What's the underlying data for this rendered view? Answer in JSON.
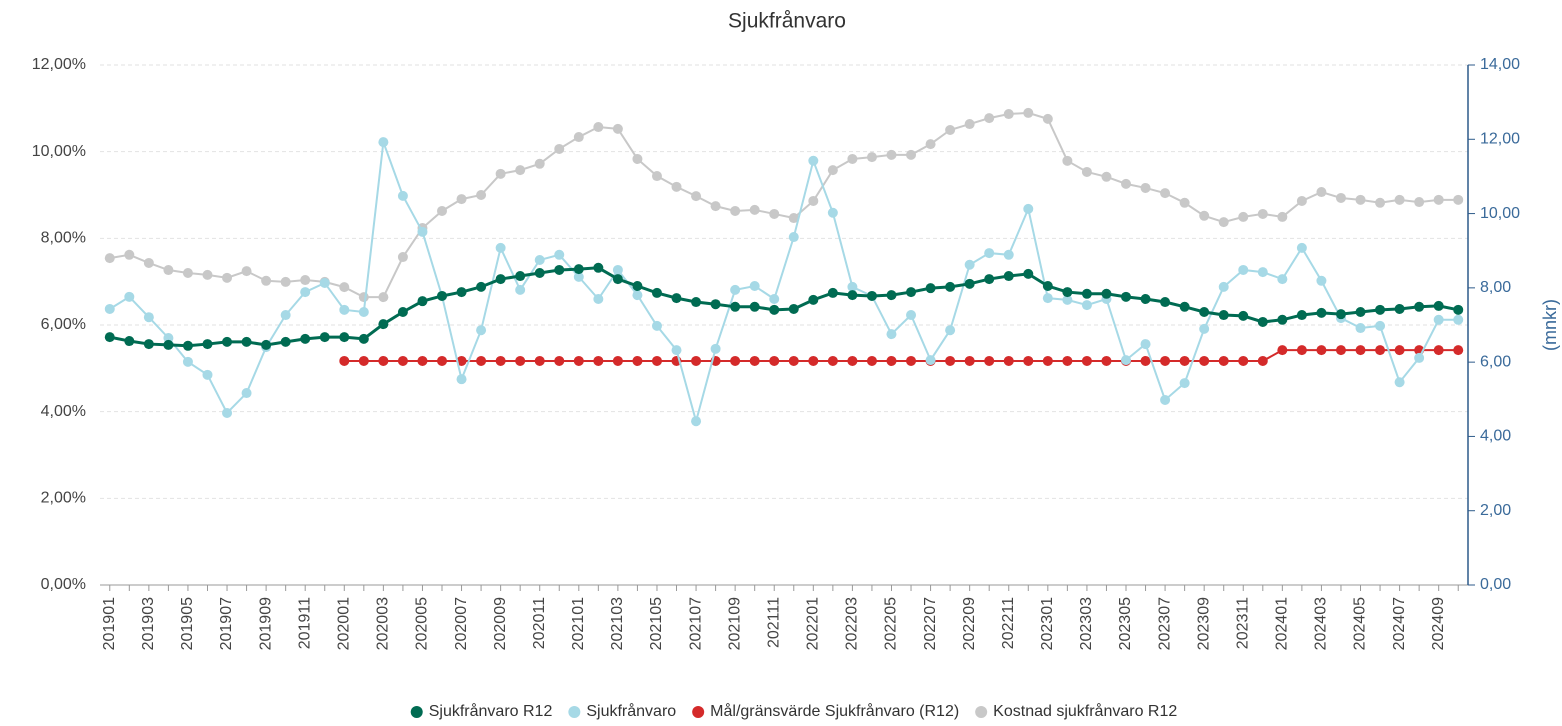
{
  "chart_data": {
    "type": "line",
    "title": "Sjukfrånvaro",
    "y2label": "(mnkr)",
    "categories": [
      "201901",
      null,
      "201903",
      null,
      "201905",
      null,
      "201907",
      null,
      "201909",
      null,
      "201911",
      null,
      "202001",
      null,
      "202003",
      null,
      "202005",
      null,
      "202007",
      null,
      "202009",
      null,
      "202011",
      null,
      "202101",
      null,
      "202103",
      null,
      "202105",
      null,
      "202107",
      null,
      "202109",
      null,
      "202111",
      null,
      "202201",
      null,
      "202203",
      null,
      "202205",
      null,
      "202207",
      null,
      "202209",
      null,
      "202211",
      null,
      "202301",
      null,
      "202303",
      null,
      "202305",
      null,
      "202307",
      null,
      "202309",
      null,
      "202311",
      null,
      "202401",
      null,
      "202403",
      null,
      "202405",
      null,
      "202407",
      null,
      "202409",
      null
    ],
    "ylim": [
      0,
      12
    ],
    "yticks": [
      {
        "value": 0,
        "label": "0,00%"
      },
      {
        "value": 2,
        "label": "2,00%"
      },
      {
        "value": 4,
        "label": "4,00%"
      },
      {
        "value": 6,
        "label": "6,00%"
      },
      {
        "value": 8,
        "label": "8,00%"
      },
      {
        "value": 10,
        "label": "10,00%"
      },
      {
        "value": 12,
        "label": "12,00%"
      }
    ],
    "y2lim": [
      0,
      14
    ],
    "y2ticks": [
      {
        "value": 0,
        "label": "0,00"
      },
      {
        "value": 2,
        "label": "2,00"
      },
      {
        "value": 4,
        "label": "4,00"
      },
      {
        "value": 6,
        "label": "6,00"
      },
      {
        "value": 8,
        "label": "8,00"
      },
      {
        "value": 10,
        "label": "10,00"
      },
      {
        "value": 12,
        "label": "12,00"
      },
      {
        "value": 14,
        "label": "14,00"
      }
    ],
    "grid": true,
    "legend": "bottom",
    "series": [
      {
        "name": "Sjukfrånvaro R12",
        "color": "#006b52",
        "values": [
          5.72,
          5.63,
          5.56,
          5.54,
          5.52,
          5.56,
          5.61,
          5.61,
          5.54,
          5.61,
          5.68,
          5.72,
          5.72,
          5.68,
          6.02,
          6.3,
          6.55,
          6.67,
          6.76,
          6.88,
          7.06,
          7.13,
          7.2,
          7.27,
          7.29,
          7.32,
          7.06,
          6.9,
          6.74,
          6.62,
          6.53,
          6.48,
          6.42,
          6.42,
          6.35,
          6.37,
          6.58,
          6.74,
          6.69,
          6.67,
          6.69,
          6.76,
          6.85,
          6.88,
          6.95,
          7.06,
          7.13,
          7.18,
          6.9,
          6.76,
          6.72,
          6.72,
          6.65,
          6.6,
          6.53,
          6.42,
          6.3,
          6.23,
          6.21,
          6.07,
          6.12,
          6.23,
          6.28,
          6.25,
          6.3,
          6.35,
          6.37,
          6.42,
          6.44,
          6.35
        ]
      },
      {
        "name": "Sjukfrånvaro",
        "color": "#a6d9e6",
        "values": [
          6.37,
          6.65,
          6.18,
          5.7,
          5.15,
          4.85,
          3.97,
          4.43,
          5.49,
          6.23,
          6.76,
          6.97,
          6.35,
          6.3,
          10.22,
          8.98,
          8.15,
          6.67,
          4.75,
          5.88,
          7.78,
          6.81,
          7.5,
          7.62,
          7.11,
          6.6,
          7.27,
          6.69,
          5.98,
          5.42,
          3.78,
          5.45,
          6.81,
          6.9,
          6.6,
          8.03,
          9.79,
          8.59,
          6.88,
          6.67,
          5.79,
          6.23,
          5.19,
          5.88,
          7.39,
          7.66,
          7.62,
          8.68,
          6.62,
          6.58,
          6.46,
          6.6,
          5.19,
          5.56,
          4.27,
          4.66,
          5.91,
          6.88,
          7.27,
          7.22,
          7.06,
          7.78,
          7.02,
          6.16,
          5.93,
          5.98,
          4.68,
          5.24,
          6.12,
          6.12
        ]
      },
      {
        "name": "Mål/gränsvärde Sjukfrånvaro (R12)",
        "color": "#d42a2a",
        "values": [
          null,
          null,
          null,
          null,
          null,
          null,
          null,
          null,
          null,
          null,
          null,
          null,
          5.17,
          5.17,
          5.17,
          5.17,
          5.17,
          5.17,
          5.17,
          5.17,
          5.17,
          5.17,
          5.17,
          5.17,
          5.17,
          5.17,
          5.17,
          5.17,
          5.17,
          5.17,
          5.17,
          5.17,
          5.17,
          5.17,
          5.17,
          5.17,
          5.17,
          5.17,
          5.17,
          5.17,
          5.17,
          5.17,
          5.17,
          5.17,
          5.17,
          5.17,
          5.17,
          5.17,
          5.17,
          5.17,
          5.17,
          5.17,
          5.17,
          5.17,
          5.17,
          5.17,
          5.17,
          5.17,
          5.17,
          5.17,
          5.42,
          5.42,
          5.42,
          5.42,
          5.42,
          5.42,
          5.42,
          5.42,
          5.42,
          5.42
        ]
      },
      {
        "name": "Kostnad sjukfrånvaro R12",
        "color": "#c8c8c8",
        "axis": "y2",
        "values": [
          8.8,
          8.89,
          8.67,
          8.48,
          8.4,
          8.35,
          8.27,
          8.45,
          8.19,
          8.16,
          8.21,
          8.16,
          8.02,
          7.75,
          7.75,
          8.83,
          9.61,
          10.07,
          10.39,
          10.5,
          11.07,
          11.17,
          11.34,
          11.74,
          12.06,
          12.33,
          12.28,
          11.47,
          11.01,
          10.72,
          10.47,
          10.2,
          10.07,
          10.1,
          9.99,
          9.88,
          10.34,
          11.17,
          11.47,
          11.52,
          11.58,
          11.58,
          11.87,
          12.25,
          12.41,
          12.57,
          12.68,
          12.71,
          12.55,
          11.42,
          11.12,
          10.99,
          10.8,
          10.69,
          10.55,
          10.29,
          9.94,
          9.77,
          9.91,
          9.99,
          9.91,
          10.34,
          10.58,
          10.42,
          10.37,
          10.29,
          10.37,
          10.31,
          10.37,
          10.37
        ]
      }
    ]
  }
}
